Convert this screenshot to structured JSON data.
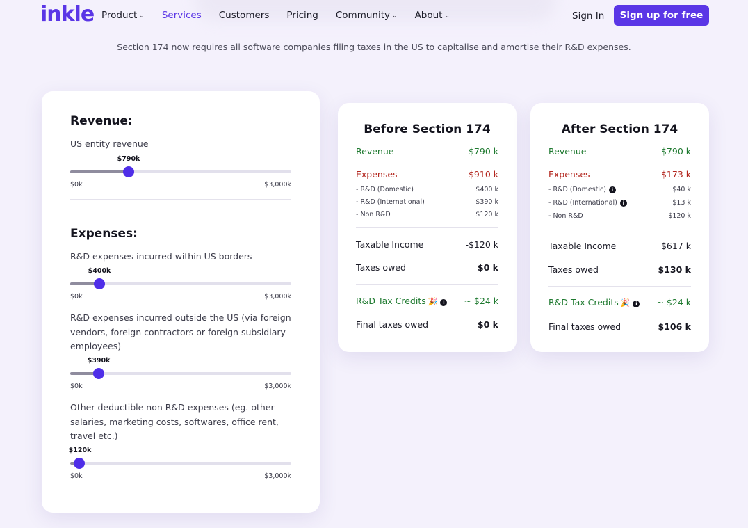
{
  "nav": {
    "logo": "inkle",
    "links": [
      {
        "label": "Product",
        "dropdown": true,
        "active": false
      },
      {
        "label": "Services",
        "dropdown": false,
        "active": true
      },
      {
        "label": "Customers",
        "dropdown": false,
        "active": false
      },
      {
        "label": "Pricing",
        "dropdown": false,
        "active": false
      },
      {
        "label": "Community",
        "dropdown": true,
        "active": false
      },
      {
        "label": "About",
        "dropdown": true,
        "active": false
      }
    ],
    "chevron": "⌄",
    "signin": "Sign In",
    "signup": "Sign up for free"
  },
  "subtitle": "Section 174 now requires all software companies filing taxes in the US to capitalise and amortise their R&D expenses.",
  "inputs": {
    "revenue_title": "Revenue:",
    "expenses_title": "Expenses:",
    "sliders": {
      "revenue": {
        "label": "US entity revenue",
        "value_label": "$790k",
        "fraction": 0.263,
        "min": "$0k",
        "max": "$3,000k"
      },
      "rd_domestic": {
        "label": "R&D expenses incurred within US borders",
        "value_label": "$400k",
        "fraction": 0.133,
        "min": "$0k",
        "max": "$3,000k"
      },
      "rd_foreign": {
        "label": "R&D expenses incurred outside the US (via foreign vendors, foreign contractors or foreign subsidiary employees)",
        "value_label": "$390k",
        "fraction": 0.13,
        "min": "$0k",
        "max": "$3,000k"
      },
      "non_rd": {
        "label": "Other deductible non R&D expenses (eg. other salaries, marketing costs, softwares, office rent, travel etc.)",
        "value_label": "$120k",
        "fraction": 0.04,
        "min": "$0k",
        "max": "$3,000k"
      }
    }
  },
  "before": {
    "title": "Before Section 174",
    "revenue_label": "Revenue",
    "revenue": "$790 k",
    "expenses_label": "Expenses",
    "expenses": "$910 k",
    "rd_domestic_label": "- R&D (Domestic)",
    "rd_domestic": "$400 k",
    "rd_international_label": "- R&D (International)",
    "rd_international": "$390 k",
    "non_rd_label": "- Non R&D",
    "non_rd": "$120 k",
    "taxable_income_label": "Taxable Income",
    "taxable_income": "-$120 k",
    "taxes_owed_label": "Taxes owed",
    "taxes_owed": "$0 k",
    "credits_label": "R&D Tax Credits",
    "credits": "~ $24 k",
    "final_label": "Final taxes owed",
    "final": "$0 k"
  },
  "after": {
    "title": "After Section 174",
    "revenue_label": "Revenue",
    "revenue": "$790 k",
    "expenses_label": "Expenses",
    "expenses": "$173 k",
    "rd_domestic_label": "- R&D (Domestic)",
    "rd_domestic": "$40 k",
    "rd_international_label": "- R&D (International)",
    "rd_international": "$13 k",
    "non_rd_label": "- Non R&D",
    "non_rd": "$120 k",
    "taxable_income_label": "Taxable Income",
    "taxable_income": "$617 k",
    "taxes_owed_label": "Taxes owed",
    "taxes_owed": "$130 k",
    "credits_label": "R&D Tax Credits",
    "credits": "~ $24 k",
    "final_label": "Final taxes owed",
    "final": "$106 k"
  },
  "icons": {
    "info": "i",
    "party": "🎉"
  },
  "colors": {
    "accent": "#5a36e6",
    "positive": "#1f7a30",
    "negative": "#b3261e",
    "background": "#f4f1fc"
  }
}
